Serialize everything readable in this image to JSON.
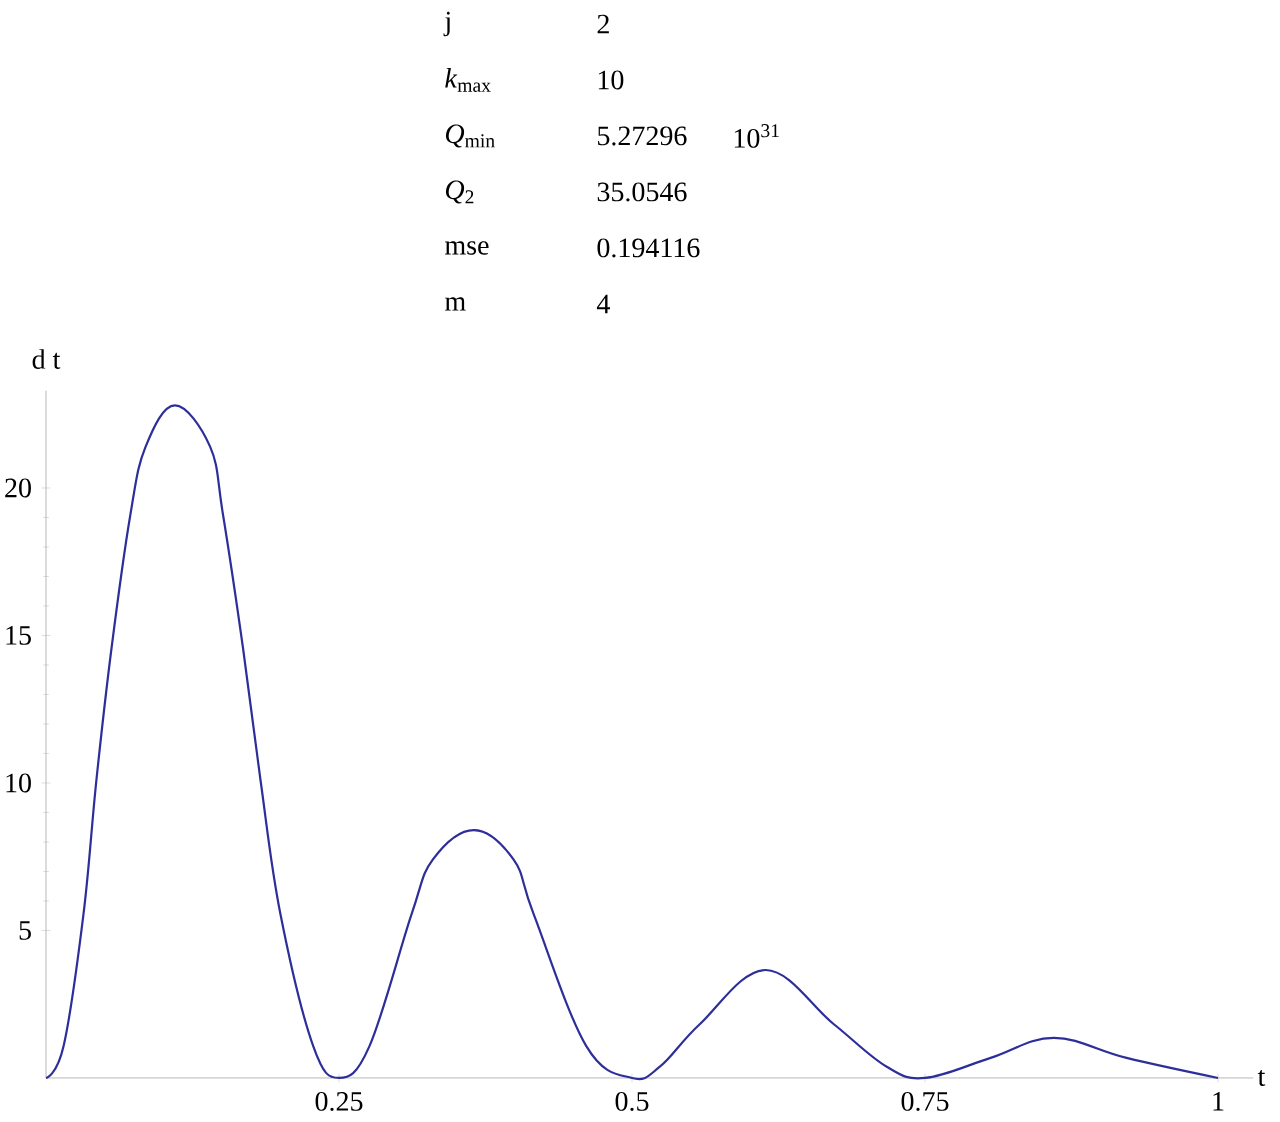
{
  "chart_data": {
    "type": "line",
    "xlabel": "t",
    "ylabel": "d t",
    "annotations": [
      "j",
      "2",
      "*k*$_{max}$",
      "10",
      "*Q*$_{min}$",
      "5.27296",
      "10$^{31}$",
      "*Q*$_{2}$",
      "35.0546",
      "mse",
      "0.194116",
      "m",
      "4"
    ],
    "x": [
      0,
      0.015,
      0.032,
      0.043,
      0.056,
      0.072,
      0.085,
      0.11,
      0.14,
      0.151,
      0.168,
      0.183,
      0.2,
      0.228,
      0.25,
      0.276,
      0.312,
      0.33,
      0.365,
      0.399,
      0.416,
      0.461,
      0.5,
      0.524,
      0.558,
      0.614,
      0.672,
      0.717,
      0.75,
      0.806,
      0.86,
      0.922,
      1
    ],
    "series": [
      {
        "color": "#2e2e9a",
        "values": [
          0,
          1.08,
          5.56,
          10.1,
          14.6,
          19.1,
          21.4,
          22.8,
          21.4,
          19.1,
          14.6,
          10.1,
          5.56,
          1.08,
          0,
          1.08,
          5.56,
          7.4,
          8.4,
          7.4,
          5.56,
          1.08,
          0,
          0.39,
          1.83,
          3.66,
          1.83,
          0.39,
          0,
          0.68,
          1.36,
          0.68,
          0
        ]
      }
    ],
    "xlim": [
      0,
      1.03
    ],
    "ylim": [
      0,
      23.3
    ],
    "xticks": [
      0.25,
      0.5,
      0.75,
      1
    ],
    "yticks": [
      5,
      10,
      15,
      20
    ],
    "grid": false,
    "marker": "none",
    "line_style": "solid"
  }
}
